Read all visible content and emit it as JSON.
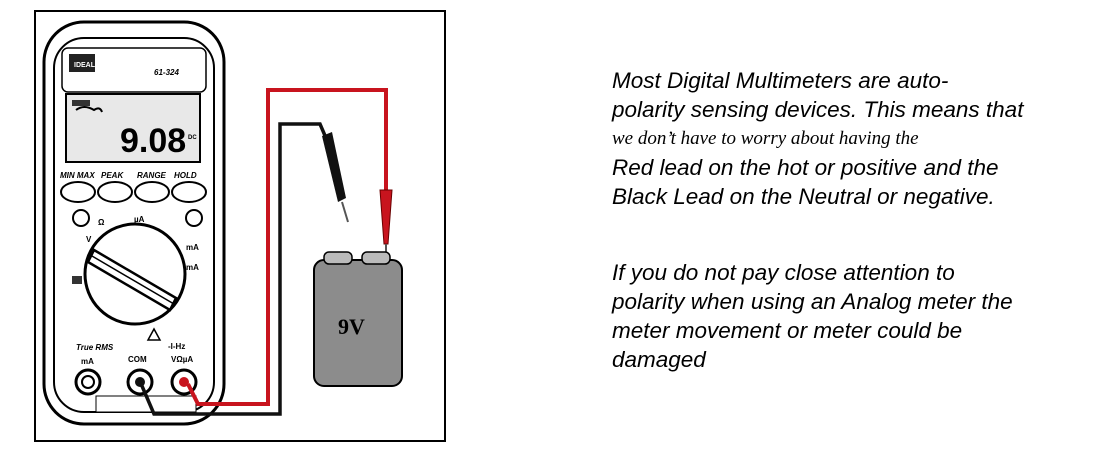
{
  "meter": {
    "model": "61-324",
    "brand": "IDEAL",
    "display_value": "9.08",
    "display_unit": "DC",
    "buttons": [
      "MIN MAX",
      "PEAK",
      "RANGE",
      "HOLD"
    ],
    "true_rms": "True RMS",
    "jacks": {
      "ma": "mA",
      "com": "COM",
      "v": "VΩµA",
      "hz": "-I-Hz"
    }
  },
  "battery": {
    "label": "9V"
  },
  "text": {
    "p1_line1": "Most Digital Multimeters are auto-",
    "p1_line2": "polarity sensing devices. This means that",
    "p1_line3": "we don’t have to worry about having the",
    "p1_line4": "Red lead on the hot or positive and the",
    "p1_line5": "Black Lead on the Neutral or negative.",
    "p2_line1": "If you do not pay close attention to",
    "p2_line2": "polarity when using an Analog meter the",
    "p2_line3": "meter movement or meter could be",
    "p2_line4": "damaged"
  },
  "colors": {
    "red_lead": "#c8141e",
    "black_lead": "#111111",
    "battery": "#8c8c8c"
  }
}
